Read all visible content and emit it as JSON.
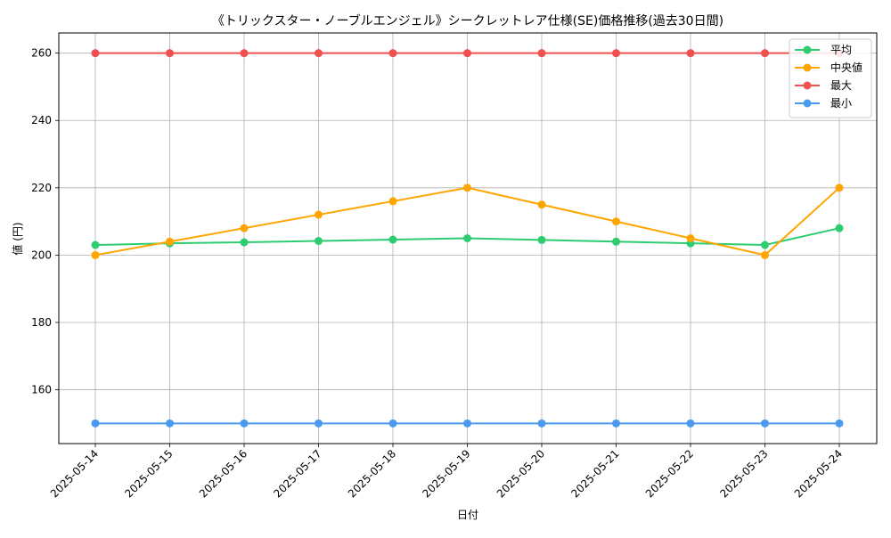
{
  "chart_data": {
    "type": "line",
    "title": "《トリックスター・ノーブルエンジェル》シークレットレア仕様(SE)価格推移(過去30日間)",
    "xlabel": "日付",
    "ylabel": "値 (円)",
    "categories": [
      "2025-05-14",
      "2025-05-15",
      "2025-05-16",
      "2025-05-17",
      "2025-05-18",
      "2025-05-19",
      "2025-05-20",
      "2025-05-21",
      "2025-05-22",
      "2025-05-23",
      "2025-05-24"
    ],
    "ylim": [
      144,
      266
    ],
    "yticks": [
      160,
      180,
      200,
      220,
      240,
      260
    ],
    "grid": true,
    "legend_position": "top-right",
    "series": [
      {
        "name": "平均",
        "color": "#2ecc71",
        "values": [
          203,
          203.5,
          203.8,
          204.2,
          204.6,
          205,
          204.5,
          204,
          203.5,
          203,
          208
        ]
      },
      {
        "name": "中央値",
        "color": "#ffa500",
        "values": [
          200,
          204,
          208,
          212,
          216,
          220,
          215,
          210,
          205,
          200,
          220
        ]
      },
      {
        "name": "最大",
        "color": "#f05050",
        "values": [
          260,
          260,
          260,
          260,
          260,
          260,
          260,
          260,
          260,
          260,
          260
        ]
      },
      {
        "name": "最小",
        "color": "#4a9af0",
        "values": [
          150,
          150,
          150,
          150,
          150,
          150,
          150,
          150,
          150,
          150,
          150
        ]
      }
    ]
  }
}
